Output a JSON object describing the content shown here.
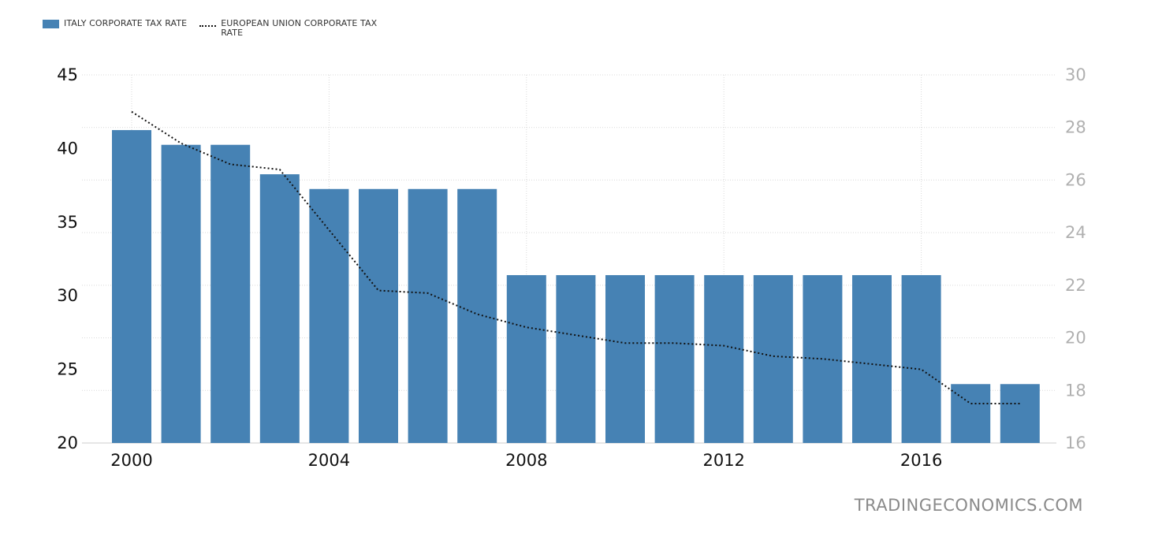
{
  "legend": {
    "italy_label": "ITALY CORPORATE TAX RATE",
    "eu_label": "EUROPEAN UNION CORPORATE TAX RATE"
  },
  "watermark": "TRADINGECONOMICS.COM",
  "colors": {
    "bar": "#4682b4",
    "line": "#111111",
    "grid": "#d9d9d9"
  },
  "chart_data": {
    "type": "bar",
    "x": [
      2000,
      2001,
      2002,
      2003,
      2004,
      2005,
      2006,
      2007,
      2008,
      2009,
      2010,
      2011,
      2012,
      2013,
      2014,
      2015,
      2016,
      2017,
      2018
    ],
    "x_ticks": [
      2000,
      2004,
      2008,
      2012,
      2016
    ],
    "series": [
      {
        "name": "ITALY CORPORATE TAX RATE",
        "type": "bar",
        "axis": "left",
        "values": [
          41.25,
          40.25,
          40.25,
          38.25,
          37.25,
          37.25,
          37.25,
          37.25,
          31.4,
          31.4,
          31.4,
          31.4,
          31.4,
          31.4,
          31.4,
          31.4,
          31.4,
          24,
          24
        ]
      },
      {
        "name": "EUROPEAN UNION CORPORATE TAX RATE",
        "type": "line",
        "style": "dotted",
        "axis": "right",
        "values": [
          28.6,
          27.4,
          26.6,
          26.4,
          24.1,
          21.8,
          21.7,
          20.9,
          20.4,
          20.1,
          19.8,
          19.8,
          19.7,
          19.3,
          19.2,
          19.0,
          18.8,
          17.5,
          17.5
        ]
      }
    ],
    "y_left": {
      "min": 20,
      "max": 45,
      "ticks": [
        20,
        25,
        30,
        35,
        40,
        45
      ]
    },
    "y_right": {
      "min": 16,
      "max": 30,
      "ticks": [
        16,
        18,
        20,
        22,
        24,
        26,
        28,
        30
      ]
    },
    "grid": true,
    "legend_position": "top-left"
  }
}
